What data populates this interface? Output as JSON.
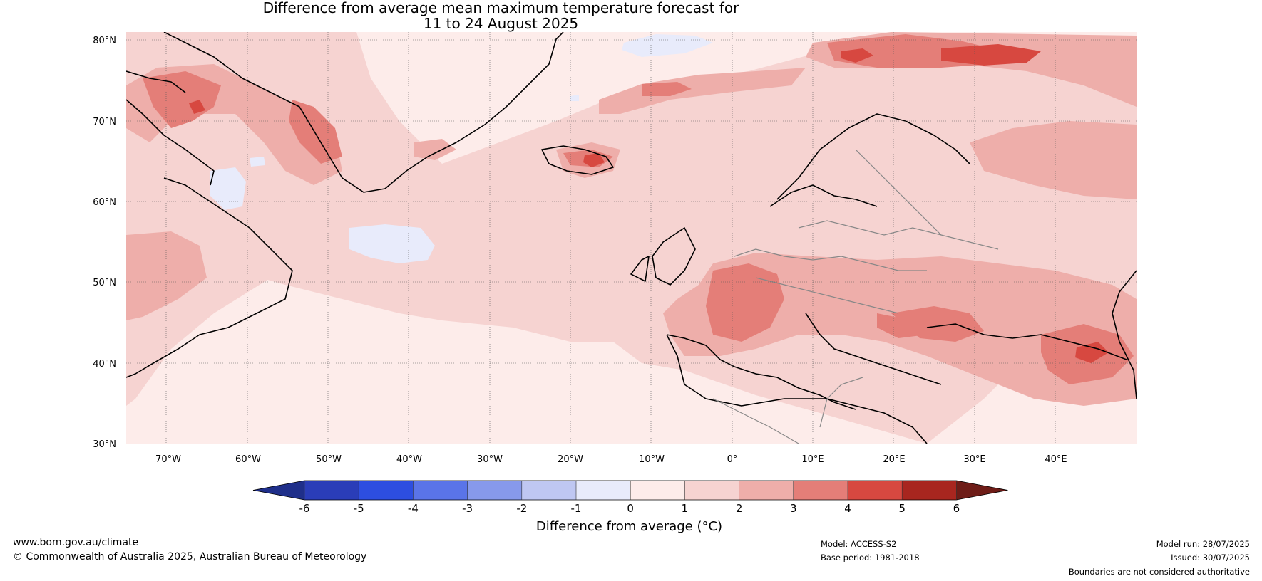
{
  "title": {
    "line1": "Difference from average mean maximum temperature forecast for",
    "line2": "11 to 24 August 2025"
  },
  "lat_labels": [
    "80°N",
    "70°N",
    "60°N",
    "50°N",
    "40°N",
    "30°N"
  ],
  "lon_labels": [
    "70°W",
    "60°W",
    "50°W",
    "40°W",
    "30°W",
    "20°W",
    "10°W",
    "0°",
    "10°E",
    "20°E",
    "30°E",
    "40°E"
  ],
  "colorbar": {
    "ticks": [
      "-6",
      "-5",
      "-4",
      "-3",
      "-2",
      "-1",
      "0",
      "1",
      "2",
      "3",
      "4",
      "5",
      "6"
    ],
    "colors": [
      "#1f2f8a",
      "#2a3db8",
      "#2d4ee0",
      "#5a74e8",
      "#8799eb",
      "#bfc7f2",
      "#e8ebfb",
      "#fdecea",
      "#f6d3d1",
      "#eeaeaa",
      "#e47e78",
      "#d74840",
      "#a8261f",
      "#6e1c17"
    ],
    "label": "Difference from average (°C)"
  },
  "footer": {
    "website": "www.bom.gov.au/climate",
    "copyright": "© Commonwealth of Australia 2025, Australian Bureau of Meteorology",
    "model": "Model: ACCESS-S2",
    "base_period": "Base period: 1981-2018",
    "model_run": "Model run: 28/07/2025",
    "issued": "Issued: 30/07/2025",
    "disclaimer": "Boundaries are not considered authoritative"
  }
}
